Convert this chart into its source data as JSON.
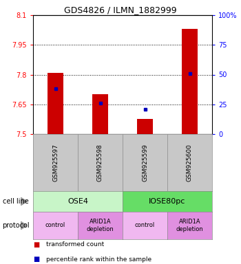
{
  "title": "GDS4826 / ILMN_1882999",
  "samples": [
    "GSM925597",
    "GSM925598",
    "GSM925599",
    "GSM925600"
  ],
  "red_bar_bottoms": [
    7.5,
    7.5,
    7.5,
    7.5
  ],
  "red_bar_tops": [
    7.81,
    7.7,
    7.575,
    8.03
  ],
  "blue_dot_values": [
    7.73,
    7.655,
    7.625,
    7.805
  ],
  "ylim_left": [
    7.5,
    8.1
  ],
  "yticks_left": [
    7.5,
    7.65,
    7.8,
    7.95,
    8.1
  ],
  "ytick_labels_left": [
    "7.5",
    "7.65",
    "7.8",
    "7.95",
    "8.1"
  ],
  "yticks_right": [
    0,
    25,
    50,
    75,
    100
  ],
  "ytick_labels_right": [
    "0",
    "25",
    "50",
    "75",
    "100%"
  ],
  "cell_line_labels": [
    "OSE4",
    "IOSE80pc"
  ],
  "cell_line_spans": [
    [
      0,
      2
    ],
    [
      2,
      4
    ]
  ],
  "cell_line_colors": [
    "#c8f5c8",
    "#66dd66"
  ],
  "protocol_labels": [
    "control",
    "ARID1A\ndepletion",
    "control",
    "ARID1A\ndepletion"
  ],
  "protocol_colors": [
    "#f0b8f0",
    "#e090e0",
    "#f0b8f0",
    "#e090e0"
  ],
  "legend_red": "transformed count",
  "legend_blue": "percentile rank within the sample",
  "cell_line_row_label": "cell line",
  "protocol_row_label": "protocol",
  "bar_color": "#cc0000",
  "dot_color": "#0000bb",
  "bar_width": 0.35,
  "sample_box_color": "#c8c8c8",
  "grid_color": "#000000",
  "background_color": "#ffffff"
}
